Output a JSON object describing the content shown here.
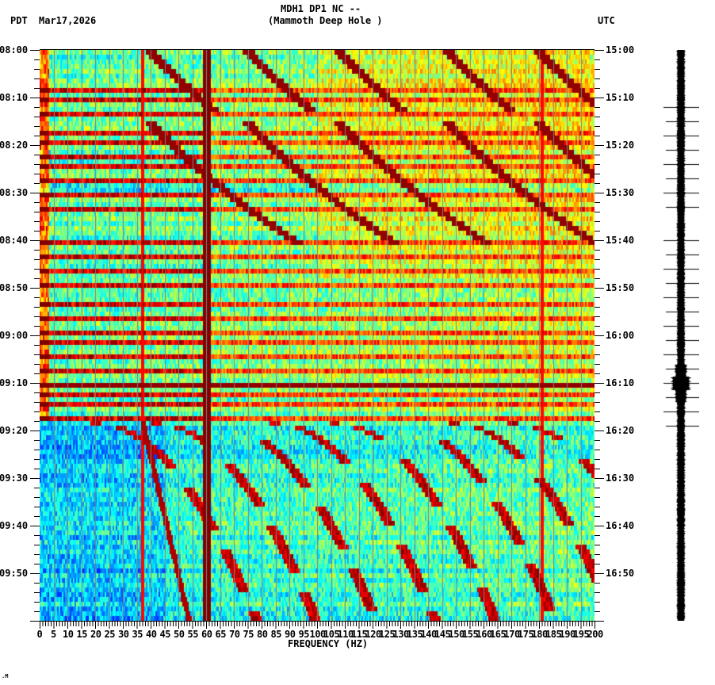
{
  "header": {
    "station_line": "MDH1 DP1 NC --",
    "location_line": "(Mammoth Deep Hole )",
    "left_timezone": "PDT",
    "date": "Mar17,2026",
    "right_timezone": "UTC"
  },
  "footer": {
    "mark": ".M"
  },
  "colors": {
    "background": "#ffffff",
    "axis": "#000000",
    "gridline": "#808080",
    "colormap": [
      "#0000ff",
      "#0080ff",
      "#00ffff",
      "#80ff80",
      "#ffff00",
      "#ff8000",
      "#ff0000",
      "#800000"
    ],
    "seismogram": "#000000"
  },
  "chart_data": {
    "type": "heatmap",
    "title": "MDH1 DP1 NC -- (Mammoth Deep Hole )",
    "xlabel": "FREQUENCY (HZ)",
    "ylabel_left": "PDT",
    "ylabel_right": "UTC",
    "date": "Mar17,2026",
    "xlim": [
      0,
      200
    ],
    "x_ticks": [
      0,
      5,
      10,
      15,
      20,
      25,
      30,
      35,
      40,
      45,
      50,
      55,
      60,
      65,
      70,
      75,
      80,
      85,
      90,
      95,
      100,
      105,
      110,
      115,
      120,
      125,
      130,
      135,
      140,
      145,
      150,
      155,
      160,
      165,
      170,
      175,
      180,
      185,
      190,
      195,
      200
    ],
    "x_tick_labels": [
      "0",
      "5",
      "10",
      "15",
      "20",
      "25",
      "30",
      "35",
      "40",
      "45",
      "50",
      "55",
      "60",
      "65",
      "70",
      "75",
      "80",
      "85",
      "90",
      "95",
      "100",
      "105",
      "110",
      "115",
      "120",
      "125",
      "130",
      "135",
      "140",
      "145",
      "150",
      "155",
      "160",
      "165",
      "170",
      "175",
      "180",
      "185",
      "190",
      "195",
      "200"
    ],
    "y_range_minutes": [
      0,
      120
    ],
    "y_ticks_left": [
      "08:00",
      "08:10",
      "08:20",
      "08:30",
      "08:40",
      "08:50",
      "09:00",
      "09:10",
      "09:20",
      "09:30",
      "09:40",
      "09:50"
    ],
    "y_ticks_right": [
      "15:00",
      "15:10",
      "15:20",
      "15:30",
      "15:40",
      "15:50",
      "16:00",
      "16:10",
      "16:20",
      "16:30",
      "16:40",
      "16:50"
    ],
    "minor_tick_interval_min": 2,
    "grid": {
      "vertical_every_hz": 5
    },
    "colorscale": "jet (blue low → dark red high)",
    "features": {
      "persistent_line_hz": 60,
      "persistent_weak_lines_hz": [
        37,
        181
      ],
      "broadband_bursts_minutes": [
        8,
        10,
        13,
        17,
        19,
        22,
        24,
        27,
        30,
        33,
        40,
        43,
        46,
        49,
        53,
        56,
        59,
        61,
        64,
        67,
        70,
        72,
        74,
        77
      ],
      "strongest_burst_minute": 70,
      "quiet_band_minutes": [
        28,
        29
      ],
      "sweeping_tones_hz_start": [
        40,
        75,
        108,
        147,
        180
      ],
      "sweep_windows_minutes": [
        [
          0,
          12
        ],
        [
          15,
          40
        ]
      ],
      "late_chirp_start_minute": 78,
      "low_freq_energy_band_hz": [
        0,
        3
      ]
    },
    "seismogram": {
      "position": "right",
      "tick_marks_minutes": [
        12,
        15,
        18,
        21,
        24,
        27,
        30,
        33,
        40,
        43,
        46,
        49,
        52,
        55,
        58,
        61,
        64,
        67,
        70,
        73,
        76,
        79
      ],
      "event_minute": 70
    }
  }
}
